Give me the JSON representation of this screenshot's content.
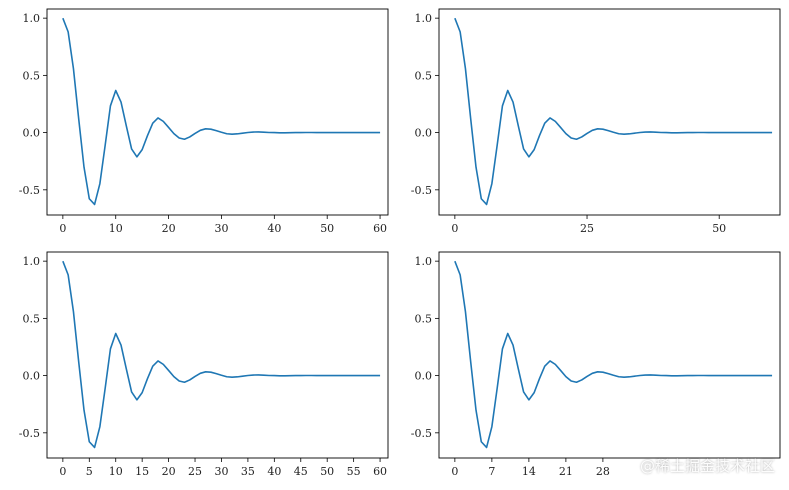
{
  "chart_data": [
    {
      "type": "line",
      "title": "",
      "xlabel": "",
      "ylabel": "",
      "xlim": [
        -3,
        61.5
      ],
      "ylim": [
        -0.72,
        1.08
      ],
      "xticks": [
        0,
        10,
        20,
        30,
        40,
        50,
        60
      ],
      "xtick_labels": [
        "0",
        "10",
        "20",
        "30",
        "40",
        "50",
        "60"
      ],
      "yticks": [
        -0.5,
        0.0,
        0.5,
        1.0
      ],
      "ytick_labels": [
        "-0.5",
        "0.0",
        "0.5",
        "1.0"
      ],
      "grid": false,
      "series": [
        {
          "x": [
            0,
            1,
            2,
            3,
            4,
            5,
            6,
            7,
            8,
            9,
            10,
            11,
            12,
            13,
            14,
            15,
            16,
            17,
            18,
            19,
            20,
            21,
            22,
            23,
            24,
            25,
            26,
            27,
            28,
            29,
            30,
            31,
            32,
            33,
            34,
            35,
            36,
            37,
            38,
            39,
            40,
            41,
            42,
            43,
            44,
            45,
            46,
            47,
            48,
            49,
            50,
            51,
            52,
            53,
            54,
            55,
            56,
            57,
            58,
            59,
            60
          ],
          "y": [
            1.0,
            0.88,
            0.56,
            0.118,
            -0.302,
            -0.578,
            -0.628,
            -0.446,
            -0.111,
            0.234,
            0.368,
            0.267,
            0.059,
            -0.143,
            -0.212,
            -0.149,
            -0.027,
            0.082,
            0.128,
            0.098,
            0.045,
            -0.009,
            -0.047,
            -0.058,
            -0.038,
            -0.007,
            0.02,
            0.033,
            0.03,
            0.017,
            0.003,
            -0.01,
            -0.014,
            -0.011,
            -0.005,
            0.001,
            0.005,
            0.006,
            0.004,
            0.001,
            0.0,
            -0.002,
            -0.002,
            -0.001,
            0.0,
            0.0,
            0.001,
            0.001,
            0.0,
            0.0,
            0.0,
            0.0,
            0.0,
            0.0,
            0.0,
            0.0,
            0.0,
            0.0,
            0.0,
            0.0,
            0.0
          ],
          "color": "#1f77b4"
        }
      ]
    },
    {
      "type": "line",
      "title": "",
      "xlabel": "",
      "ylabel": "",
      "xlim": [
        -3,
        61.5
      ],
      "ylim": [
        -0.72,
        1.08
      ],
      "xticks": [
        0,
        25,
        50
      ],
      "xtick_labels": [
        "0",
        "25",
        "50"
      ],
      "yticks": [
        -0.5,
        0.0,
        0.5,
        1.0
      ],
      "ytick_labels": [
        "-0.5",
        "0.0",
        "0.5",
        "1.0"
      ],
      "grid": false,
      "series": [
        {
          "x": [
            0,
            1,
            2,
            3,
            4,
            5,
            6,
            7,
            8,
            9,
            10,
            11,
            12,
            13,
            14,
            15,
            16,
            17,
            18,
            19,
            20,
            21,
            22,
            23,
            24,
            25,
            26,
            27,
            28,
            29,
            30,
            31,
            32,
            33,
            34,
            35,
            36,
            37,
            38,
            39,
            40,
            41,
            42,
            43,
            44,
            45,
            46,
            47,
            48,
            49,
            50,
            51,
            52,
            53,
            54,
            55,
            56,
            57,
            58,
            59,
            60
          ],
          "y": [
            1.0,
            0.88,
            0.56,
            0.118,
            -0.302,
            -0.578,
            -0.628,
            -0.446,
            -0.111,
            0.234,
            0.368,
            0.267,
            0.059,
            -0.143,
            -0.212,
            -0.149,
            -0.027,
            0.082,
            0.128,
            0.098,
            0.045,
            -0.009,
            -0.047,
            -0.058,
            -0.038,
            -0.007,
            0.02,
            0.033,
            0.03,
            0.017,
            0.003,
            -0.01,
            -0.014,
            -0.011,
            -0.005,
            0.001,
            0.005,
            0.006,
            0.004,
            0.001,
            0.0,
            -0.002,
            -0.002,
            -0.001,
            0.0,
            0.0,
            0.001,
            0.001,
            0.0,
            0.0,
            0.0,
            0.0,
            0.0,
            0.0,
            0.0,
            0.0,
            0.0,
            0.0,
            0.0,
            0.0,
            0.0
          ],
          "color": "#1f77b4"
        }
      ]
    },
    {
      "type": "line",
      "title": "",
      "xlabel": "",
      "ylabel": "",
      "xlim": [
        -3,
        61.5
      ],
      "ylim": [
        -0.72,
        1.08
      ],
      "xticks": [
        0,
        5,
        10,
        15,
        20,
        25,
        30,
        35,
        40,
        45,
        50,
        55,
        60
      ],
      "xtick_labels": [
        "0",
        "5",
        "10",
        "15",
        "20",
        "25",
        "30",
        "35",
        "40",
        "45",
        "50",
        "55",
        "60"
      ],
      "yticks": [
        -0.5,
        0.0,
        0.5,
        1.0
      ],
      "ytick_labels": [
        "-0.5",
        "0.0",
        "0.5",
        "1.0"
      ],
      "grid": false,
      "series": [
        {
          "x": [
            0,
            1,
            2,
            3,
            4,
            5,
            6,
            7,
            8,
            9,
            10,
            11,
            12,
            13,
            14,
            15,
            16,
            17,
            18,
            19,
            20,
            21,
            22,
            23,
            24,
            25,
            26,
            27,
            28,
            29,
            30,
            31,
            32,
            33,
            34,
            35,
            36,
            37,
            38,
            39,
            40,
            41,
            42,
            43,
            44,
            45,
            46,
            47,
            48,
            49,
            50,
            51,
            52,
            53,
            54,
            55,
            56,
            57,
            58,
            59,
            60
          ],
          "y": [
            1.0,
            0.88,
            0.56,
            0.118,
            -0.302,
            -0.578,
            -0.628,
            -0.446,
            -0.111,
            0.234,
            0.368,
            0.267,
            0.059,
            -0.143,
            -0.212,
            -0.149,
            -0.027,
            0.082,
            0.128,
            0.098,
            0.045,
            -0.009,
            -0.047,
            -0.058,
            -0.038,
            -0.007,
            0.02,
            0.033,
            0.03,
            0.017,
            0.003,
            -0.01,
            -0.014,
            -0.011,
            -0.005,
            0.001,
            0.005,
            0.006,
            0.004,
            0.001,
            0.0,
            -0.002,
            -0.002,
            -0.001,
            0.0,
            0.0,
            0.001,
            0.001,
            0.0,
            0.0,
            0.0,
            0.0,
            0.0,
            0.0,
            0.0,
            0.0,
            0.0,
            0.0,
            0.0,
            0.0,
            0.0
          ],
          "color": "#1f77b4"
        }
      ]
    },
    {
      "type": "line",
      "title": "",
      "xlabel": "",
      "ylabel": "",
      "xlim": [
        -3,
        61.5
      ],
      "ylim": [
        -0.72,
        1.08
      ],
      "xticks": [
        0,
        7,
        14,
        21,
        28
      ],
      "xtick_labels": [
        "0",
        "7",
        "14",
        "21",
        "28"
      ],
      "yticks": [
        -0.5,
        0.0,
        0.5,
        1.0
      ],
      "ytick_labels": [
        "-0.5",
        "0.0",
        "0.5",
        "1.0"
      ],
      "grid": false,
      "series": [
        {
          "x": [
            0,
            1,
            2,
            3,
            4,
            5,
            6,
            7,
            8,
            9,
            10,
            11,
            12,
            13,
            14,
            15,
            16,
            17,
            18,
            19,
            20,
            21,
            22,
            23,
            24,
            25,
            26,
            27,
            28,
            29,
            30,
            31,
            32,
            33,
            34,
            35,
            36,
            37,
            38,
            39,
            40,
            41,
            42,
            43,
            44,
            45,
            46,
            47,
            48,
            49,
            50,
            51,
            52,
            53,
            54,
            55,
            56,
            57,
            58,
            59,
            60
          ],
          "y": [
            1.0,
            0.88,
            0.56,
            0.118,
            -0.302,
            -0.578,
            -0.628,
            -0.446,
            -0.111,
            0.234,
            0.368,
            0.267,
            0.059,
            -0.143,
            -0.212,
            -0.149,
            -0.027,
            0.082,
            0.128,
            0.098,
            0.045,
            -0.009,
            -0.047,
            -0.058,
            -0.038,
            -0.007,
            0.02,
            0.033,
            0.03,
            0.017,
            0.003,
            -0.01,
            -0.014,
            -0.011,
            -0.005,
            0.001,
            0.005,
            0.006,
            0.004,
            0.001,
            0.0,
            -0.002,
            -0.002,
            -0.001,
            0.0,
            0.0,
            0.001,
            0.001,
            0.0,
            0.0,
            0.0,
            0.0,
            0.0,
            0.0,
            0.0,
            0.0,
            0.0,
            0.0,
            0.0,
            0.0,
            0.0
          ],
          "color": "#1f77b4"
        }
      ]
    }
  ],
  "watermark": "@稀土掘金技术社区"
}
